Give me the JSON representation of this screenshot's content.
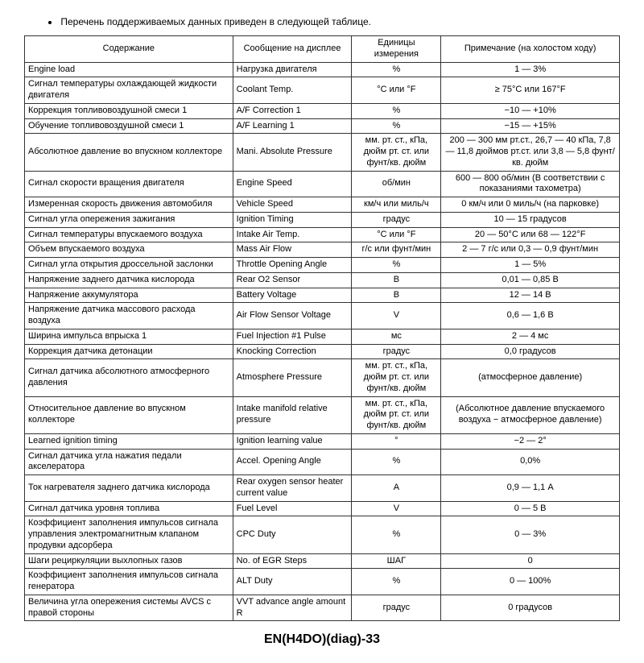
{
  "intro": "Перечень поддерживаемых данных приведен в следующей таблице.",
  "headers": {
    "col1": "Содержание",
    "col2": "Сообщение на дисплее",
    "col3": "Единицы измерения",
    "col4": "Примечание (на холостом ходу)"
  },
  "rows": [
    {
      "c1": "Engine load",
      "c2": "Нагрузка двигателя",
      "c3": "%",
      "c4": "1 — 3%"
    },
    {
      "c1": "Сигнал температуры охлаждающей жидкости двигателя",
      "c2": "Coolant Temp.",
      "c3": "°C или °F",
      "c4": "≥ 75°C или 167°F"
    },
    {
      "c1": "Коррекция топливовоздушной смеси 1",
      "c2": "A/F Correction 1",
      "c3": "%",
      "c4": "−10 — +10%"
    },
    {
      "c1": "Обучение топливовоздушной смеси 1",
      "c2": "A/F Learning 1",
      "c3": "%",
      "c4": "−15 — +15%"
    },
    {
      "c1": "Абсолютное давление во впускном коллекторе",
      "c2": "Mani. Absolute Pressure",
      "c3": "мм. рт. ст., кПа, дюйм рт. ст. или фунт/кв. дюйм",
      "c4": "200 — 300 мм рт.ст., 26,7 — 40 кПа, 7,8 — 11,8 дюймов рт.ст. или 3,8 — 5,8 фунт/кв. дюйм"
    },
    {
      "c1": "Сигнал скорости вращения двигателя",
      "c2": "Engine Speed",
      "c3": "об/мин",
      "c4": "600 — 800 об/мин (В соответствии с показаниями тахометра)"
    },
    {
      "c1": "Измеренная скорость движения автомобиля",
      "c2": "Vehicle Speed",
      "c3": "км/ч или миль/ч",
      "c4": "0 км/ч или 0 миль/ч (на парковке)"
    },
    {
      "c1": "Сигнал угла опережения зажигания",
      "c2": "Ignition Timing",
      "c3": "градус",
      "c4": "10 — 15 градусов"
    },
    {
      "c1": "Сигнал температуры впускаемого воздуха",
      "c2": "Intake Air Temp.",
      "c3": "°C или °F",
      "c4": "20 — 50°C или 68 — 122°F"
    },
    {
      "c1": "Объем впускаемого воздуха",
      "c2": "Mass Air Flow",
      "c3": "г/с или фунт/мин",
      "c4": "2 — 7 г/с или 0,3 — 0,9 фунт/мин"
    },
    {
      "c1": "Сигнал угла открытия дроссельной заслонки",
      "c2": "Throttle Opening Angle",
      "c3": "%",
      "c4": "1 — 5%"
    },
    {
      "c1": "Напряжение заднего датчика кислорода",
      "c2": "Rear O2 Sensor",
      "c3": "В",
      "c4": "0,01 — 0,85 В"
    },
    {
      "c1": "Напряжение аккумулятора",
      "c2": "Battery Voltage",
      "c3": "В",
      "c4": "12 — 14 В"
    },
    {
      "c1": "Напряжение датчика массового расхода воздуха",
      "c2": "Air Flow Sensor Voltage",
      "c3": "V",
      "c4": "0,6 — 1,6 В"
    },
    {
      "c1": "Ширина импульса впрыска 1",
      "c2": "Fuel Injection #1 Pulse",
      "c3": "мс",
      "c4": "2 — 4 мс"
    },
    {
      "c1": "Коррекция датчика детонации",
      "c2": "Knocking Correction",
      "c3": "градус",
      "c4": "0,0 градусов"
    },
    {
      "c1": "Сигнал датчика абсолютного атмосферного давления",
      "c2": "Atmosphere Pressure",
      "c3": "мм. рт. ст., кПа, дюйм рт. ст. или фунт/кв. дюйм",
      "c4": "(атмосферное давление)"
    },
    {
      "c1": "Относительное давление во впускном коллекторе",
      "c2": "Intake manifold relative pressure",
      "c3": "мм. рт. ст., кПа, дюйм рт. ст. или фунт/кв. дюйм",
      "c4": "(Абсолютное давление впускаемого воздуха − атмосферное давление)"
    },
    {
      "c1": "Learned ignition timing",
      "c2": "Ignition learning value",
      "c3": "°",
      "c4": "−2 — 2°"
    },
    {
      "c1": "Сигнал датчика угла нажатия педали акселератора",
      "c2": "Accel. Opening Angle",
      "c3": "%",
      "c4": "0,0%"
    },
    {
      "c1": "Ток нагревателя заднего датчика кислорода",
      "c2": "Rear oxygen sensor heater current value",
      "c3": "А",
      "c4": "0,9 — 1,1 А"
    },
    {
      "c1": "Сигнал датчика уровня топлива",
      "c2": "Fuel Level",
      "c3": "V",
      "c4": "0 — 5 В"
    },
    {
      "c1": "Коэффициент заполнения импульсов сигнала управления электромагнитным клапаном продувки адсорбера",
      "c2": "CPC Duty",
      "c3": "%",
      "c4": "0 — 3%"
    },
    {
      "c1": "Шаги рециркуляции выхлопных газов",
      "c2": "No. of EGR Steps",
      "c3": "ШАГ",
      "c4": "0"
    },
    {
      "c1": "Коэффициент заполнения импульсов сигнала генератора",
      "c2": "ALT Duty",
      "c3": "%",
      "c4": "0 — 100%"
    },
    {
      "c1": "Величина угла опережения системы AVCS с правой стороны",
      "c2": "VVT advance angle amount R",
      "c3": "градус",
      "c4": "0 градусов"
    }
  ],
  "footer": "EN(H4DO)(diag)-33"
}
